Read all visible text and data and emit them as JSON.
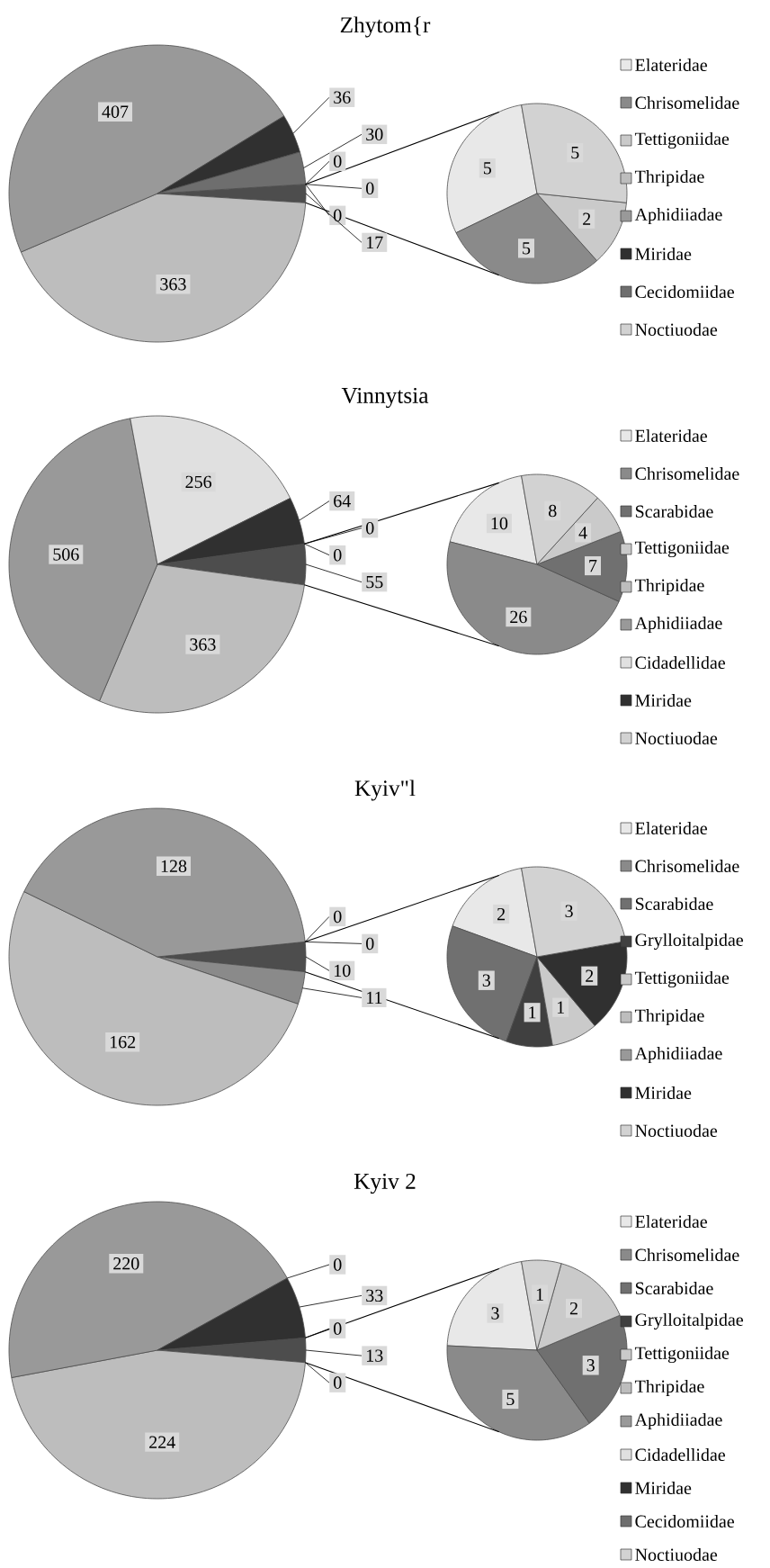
{
  "chart_data": [
    {
      "type": "pie",
      "title": "Zhytom{r",
      "legend": "right",
      "data_labels": true,
      "categories": [
        "Elateridae",
        "Chrisomelidae",
        "Tettigoniidae",
        "Thripidae",
        "Aphidiiadae",
        "Miridae",
        "Cecidomiidae",
        "Noctiuodae",
        null,
        null,
        null,
        null
      ],
      "colors": [
        "#e8e8e8",
        "#8a8a8a",
        "#cacaca",
        "#bdbdbd",
        "#999999",
        "#303030",
        "#6e6e6e",
        "#d2d2d2",
        "#ffffff",
        "#ffffff",
        "#ffffff",
        "#4d4d4d"
      ],
      "series": [
        {
          "values": [
            null,
            null,
            null,
            363,
            407,
            36,
            30,
            null,
            0,
            0,
            0,
            17
          ],
          "value_labels": [
            null,
            null,
            null,
            "363",
            "407",
            "36",
            "30",
            null,
            "0",
            "0",
            "0",
            "17"
          ]
        },
        {
          "values": [
            5,
            5,
            2,
            null,
            null,
            null,
            null,
            5,
            null,
            null,
            null,
            null
          ],
          "value_labels": [
            "5",
            "5",
            "2",
            null,
            null,
            null,
            null,
            "5",
            null,
            null,
            null,
            null
          ]
        }
      ]
    },
    {
      "type": "pie",
      "title": "Vinnytsia",
      "legend": "right",
      "data_labels": true,
      "categories": [
        "Elateridae",
        "Chrisomelidae",
        "Scarabidae",
        "Tettigoniidae",
        "Thripidae",
        "Aphidiiadae",
        "Cidadellidae",
        "Miridae",
        "Noctiuodae",
        null,
        null,
        null
      ],
      "colors": [
        "#e8e8e8",
        "#8a8a8a",
        "#707070",
        "#cacaca",
        "#bdbdbd",
        "#999999",
        "#e0e0e0",
        "#303030",
        "#d2d2d2",
        "#ffffff",
        "#ffffff",
        "#4d4d4d"
      ],
      "series": [
        {
          "values": [
            null,
            null,
            null,
            null,
            363,
            506,
            256,
            64,
            null,
            0,
            0,
            55
          ],
          "value_labels": [
            null,
            null,
            null,
            null,
            "363",
            "506",
            "256",
            "64",
            null,
            "0",
            "0",
            "55"
          ]
        },
        {
          "values": [
            10,
            26,
            7,
            4,
            null,
            null,
            null,
            null,
            8,
            null,
            null,
            null
          ],
          "value_labels": [
            "10",
            "26",
            "7",
            "4",
            null,
            null,
            null,
            null,
            "8",
            null,
            null,
            null
          ]
        }
      ]
    },
    {
      "type": "pie",
      "title": "Kyiv\"l",
      "legend": "right",
      "data_labels": true,
      "categories": [
        "Elateridae",
        "Chrisomelidae",
        "Scarabidae",
        "Grylloitalpidae",
        "Tettigoniidae",
        "Thripidae",
        "Aphidiiadae",
        "Miridae",
        "Noctiuodae",
        null,
        null,
        null
      ],
      "colors": [
        "#e8e8e8",
        "#8a8a8a",
        "#707070",
        "#404040",
        "#cacaca",
        "#bdbdbd",
        "#999999",
        "#303030",
        "#d2d2d2",
        "#ffffff",
        "#ffffff",
        "#4d4d4d"
      ],
      "series": [
        {
          "values": [
            null,
            11,
            null,
            null,
            null,
            162,
            128,
            null,
            null,
            0,
            0,
            10
          ],
          "value_labels": [
            null,
            "11",
            null,
            null,
            null,
            "162",
            "128",
            null,
            null,
            "0",
            "0",
            "10"
          ]
        },
        {
          "values": [
            2,
            null,
            3,
            1,
            1,
            null,
            null,
            2,
            3,
            null,
            null,
            null
          ],
          "value_labels": [
            "2",
            null,
            "3",
            "1",
            "1",
            null,
            null,
            "2",
            "3",
            null,
            null,
            null
          ]
        }
      ]
    },
    {
      "type": "pie",
      "title": "Kyiv 2",
      "legend": "right",
      "data_labels": true,
      "categories": [
        "Elateridae",
        "Chrisomelidae",
        "Scarabidae",
        "Grylloitalpidae",
        "Tettigoniidae",
        "Thripidae",
        "Aphidiiadae",
        "Cidadellidae",
        "Miridae",
        "Cecidomiidae",
        "Noctiuodae",
        null
      ],
      "colors": [
        "#e8e8e8",
        "#8a8a8a",
        "#707070",
        "#404040",
        "#cacaca",
        "#bdbdbd",
        "#999999",
        "#e0e0e0",
        "#303030",
        "#6e6e6e",
        "#d2d2d2",
        "#4d4d4d"
      ],
      "series": [
        {
          "values": [
            null,
            null,
            null,
            0,
            null,
            224,
            220,
            0,
            33,
            0,
            null,
            13
          ],
          "value_labels": [
            null,
            null,
            null,
            "0",
            null,
            "224",
            "220",
            "0",
            "33",
            "0",
            null,
            "13"
          ]
        },
        {
          "values": [
            3,
            5,
            3,
            null,
            2,
            null,
            null,
            null,
            null,
            null,
            1,
            null
          ],
          "value_labels": [
            "3",
            "5",
            "3",
            null,
            "2",
            null,
            null,
            null,
            null,
            null,
            "1",
            null
          ]
        }
      ]
    }
  ]
}
